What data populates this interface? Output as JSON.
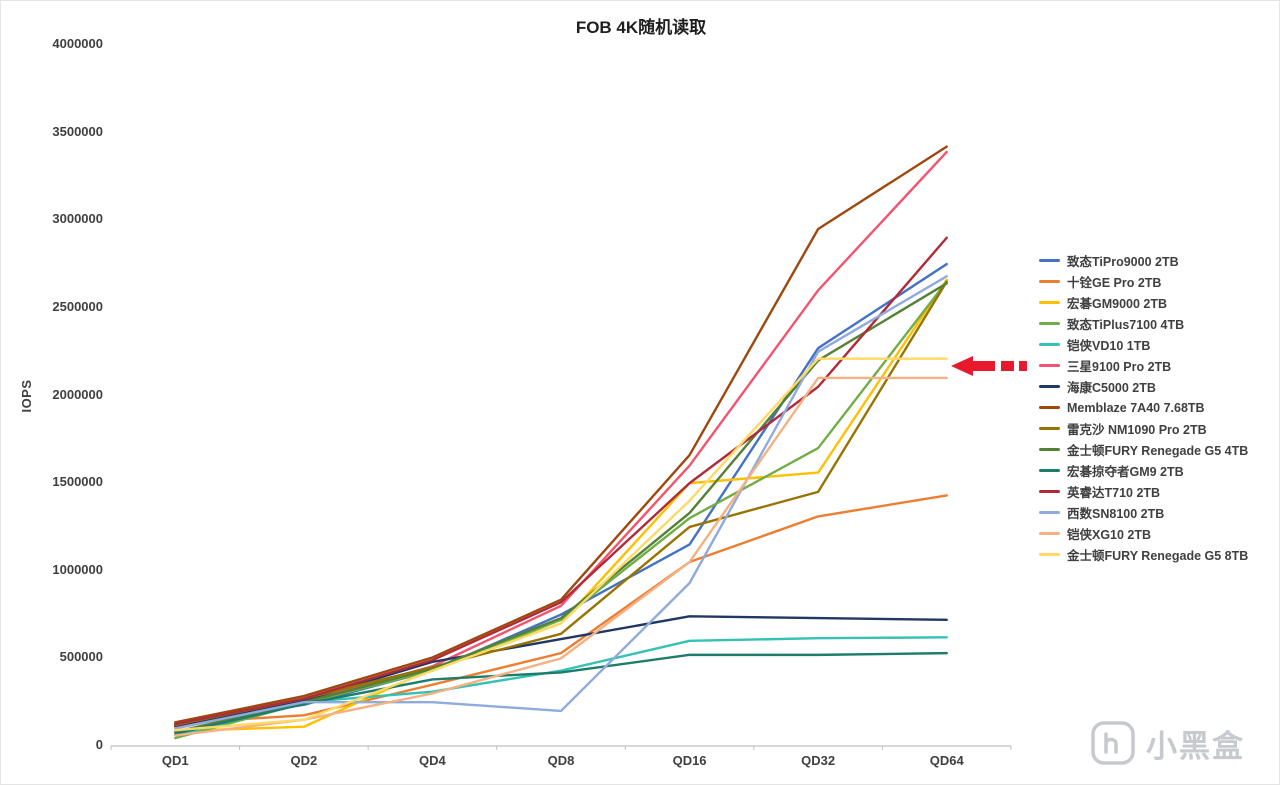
{
  "page": {
    "title": "FOB 4K随机读取"
  },
  "chart_data": {
    "type": "line",
    "title": "FOB 4K随机读取",
    "xlabel": "",
    "ylabel": "IOPS",
    "categories": [
      "QD1",
      "QD2",
      "QD4",
      "QD8",
      "QD16",
      "QD32",
      "QD64"
    ],
    "ylim": [
      0,
      4000000
    ],
    "y_ticks": [
      0,
      500000,
      1000000,
      1500000,
      2000000,
      2500000,
      3000000,
      3500000,
      4000000
    ],
    "grid": false,
    "legend_position": "right",
    "series": [
      {
        "name": "致态TiPro9000 2TB",
        "color": "#4472C4",
        "values": [
          120000,
          235000,
          430000,
          750000,
          1150000,
          2270000,
          2750000
        ]
      },
      {
        "name": "十铨GE Pro 2TB",
        "color": "#ED7D31",
        "values": [
          130000,
          175000,
          350000,
          530000,
          1050000,
          1310000,
          1430000
        ]
      },
      {
        "name": "宏碁GM9000 2TB",
        "color": "#FFC000",
        "values": [
          85000,
          110000,
          440000,
          700000,
          1500000,
          1560000,
          2660000
        ]
      },
      {
        "name": "致态TiPlus7100 4TB",
        "color": "#70AD47",
        "values": [
          45000,
          245000,
          430000,
          720000,
          1300000,
          1700000,
          2650000
        ]
      },
      {
        "name": "铠侠VD10 1TB",
        "color": "#35C2B4",
        "values": [
          60000,
          250000,
          310000,
          430000,
          600000,
          615000,
          620000
        ]
      },
      {
        "name": "三星9100 Pro 2TB",
        "color": "#F4536E",
        "values": [
          110000,
          250000,
          455000,
          800000,
          1600000,
          2600000,
          3390000
        ]
      },
      {
        "name": "海康C5000 2TB",
        "color": "#203864",
        "values": [
          115000,
          260000,
          480000,
          610000,
          740000,
          730000,
          720000
        ]
      },
      {
        "name": "Memblaze 7A40 7.68TB",
        "color": "#9E480E",
        "values": [
          135000,
          285000,
          505000,
          835000,
          1660000,
          2950000,
          3420000
        ]
      },
      {
        "name": "雷克沙 NM1090 Pro 2TB",
        "color": "#997300",
        "values": [
          120000,
          270000,
          450000,
          640000,
          1250000,
          1450000,
          2650000
        ]
      },
      {
        "name": "金士顿FURY Renegade G5 4TB",
        "color": "#548235",
        "values": [
          80000,
          250000,
          440000,
          730000,
          1330000,
          2200000,
          2640000
        ]
      },
      {
        "name": "宏碁掠夺者GM9 2TB",
        "color": "#1D7D6B",
        "values": [
          70000,
          240000,
          380000,
          420000,
          520000,
          520000,
          530000
        ]
      },
      {
        "name": "英睿达T710 2TB",
        "color": "#B02A37",
        "values": [
          125000,
          270000,
          490000,
          820000,
          1500000,
          2050000,
          2900000
        ]
      },
      {
        "name": "西数SN8100 2TB",
        "color": "#8FAADC",
        "values": [
          100000,
          250000,
          250000,
          200000,
          930000,
          2250000,
          2680000
        ]
      },
      {
        "name": "铠侠XG10 2TB",
        "color": "#F4B183",
        "values": [
          60000,
          150000,
          300000,
          500000,
          1050000,
          2100000,
          2100000
        ]
      },
      {
        "name": "金士顿FURY Renegade G5 8TB",
        "color": "#FFD966",
        "values": [
          90000,
          150000,
          430000,
          700000,
          1400000,
          2210000,
          2210000
        ]
      }
    ]
  },
  "annotation": {
    "arrow": {
      "target": "三星9100 Pro 2TB",
      "direction": "left",
      "style": "dashed",
      "color": "#E8192C"
    }
  },
  "watermark": {
    "text": "小黑盒"
  }
}
